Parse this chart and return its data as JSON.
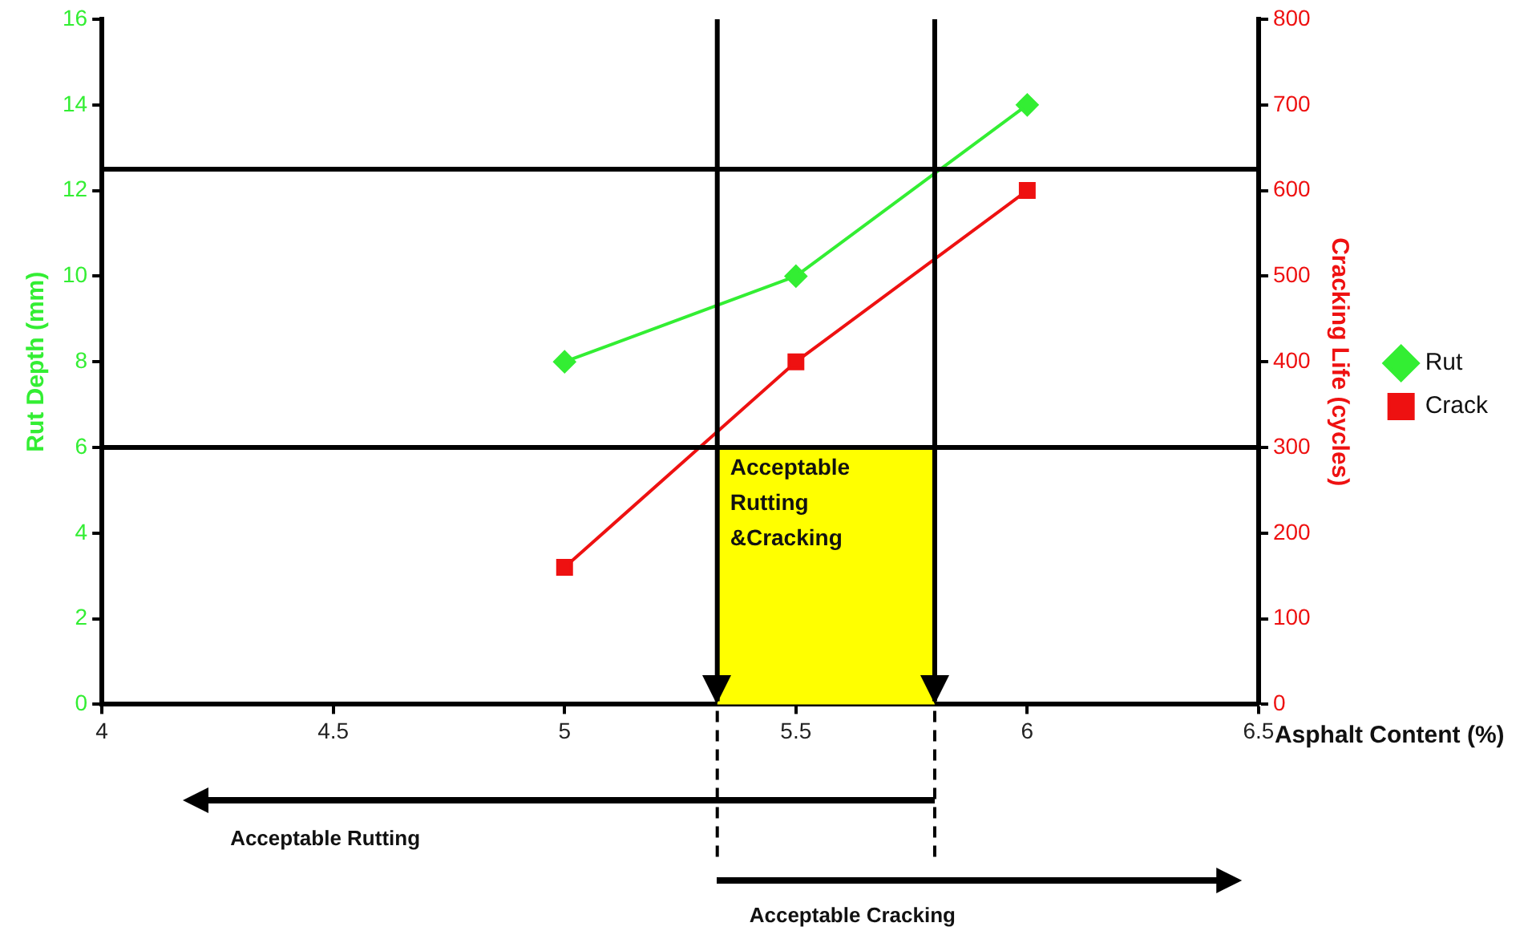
{
  "chart_data": {
    "type": "line",
    "xlabel": "Asphalt Content (%)",
    "ylabel": "Rut Depth (mm)",
    "y2label": "Cracking Life (cycles)",
    "x": [
      5,
      5.5,
      6
    ],
    "series": [
      {
        "name": "Rut",
        "color": "#33ee33",
        "values": [
          8,
          10,
          14
        ],
        "marker": "diamond"
      },
      {
        "name": "Crack",
        "color": "#ee1111",
        "values": [
          160,
          400,
          600
        ],
        "marker": "square",
        "axis": "y2"
      }
    ],
    "xlim": [
      4,
      6.5
    ],
    "xticks": [
      4,
      4.5,
      5,
      5.5,
      6,
      6.5
    ],
    "ylim": [
      0,
      16
    ],
    "yticks": [
      0,
      2,
      4,
      6,
      8,
      10,
      12,
      14,
      16
    ],
    "y2lim": [
      0,
      800
    ],
    "y2ticks": [
      0,
      100,
      200,
      300,
      400,
      500,
      600,
      700,
      800
    ],
    "ref_lines": [
      {
        "axis": "y",
        "value": 12.5,
        "color": "#000000"
      },
      {
        "axis": "y2",
        "value": 300,
        "color": "#000000"
      },
      {
        "axis": "x",
        "value": 5.33,
        "color": "#000000"
      },
      {
        "axis": "x",
        "value": 5.8,
        "color": "#000000"
      }
    ],
    "bands": [
      {
        "axis": "x",
        "from": 5.33,
        "to": 5.8,
        "label": "Acceptable Rutting &Cracking",
        "color": "#ffff00"
      }
    ],
    "annotations": [
      "Acceptable  Rutting",
      "Acceptable  Cracking"
    ],
    "grid": false,
    "legend": "right"
  }
}
